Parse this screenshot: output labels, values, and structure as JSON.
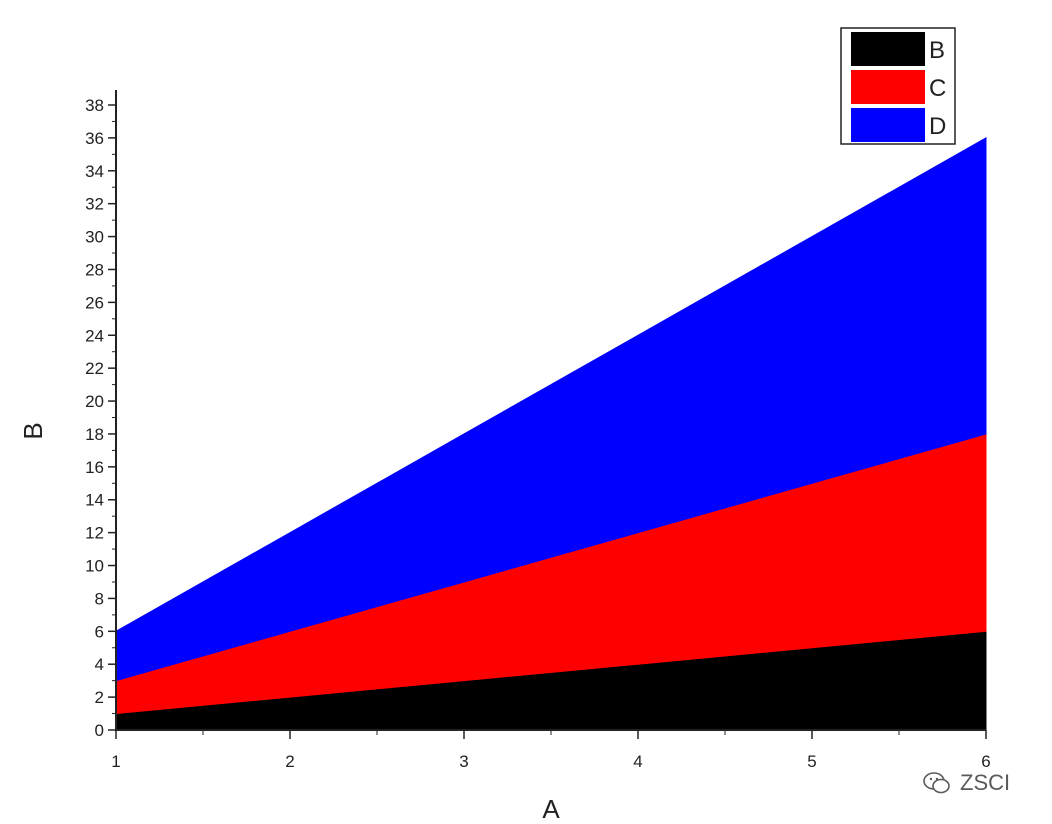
{
  "chart_data": {
    "type": "area",
    "stacked": true,
    "title": "",
    "xlabel": "A",
    "ylabel": "B",
    "x": [
      1,
      2,
      3,
      4,
      5,
      6
    ],
    "xlim": [
      1,
      6
    ],
    "ylim": [
      0,
      38
    ],
    "xticks": [
      1,
      2,
      3,
      4,
      5,
      6
    ],
    "yticks": [
      0,
      2,
      4,
      6,
      8,
      10,
      12,
      14,
      16,
      18,
      20,
      22,
      24,
      26,
      28,
      30,
      32,
      34,
      36,
      38
    ],
    "series": [
      {
        "name": "B",
        "color": "#000000",
        "values": [
          1,
          2,
          3,
          4,
          5,
          6
        ]
      },
      {
        "name": "C",
        "color": "#ff0000",
        "values": [
          2,
          4,
          6,
          8,
          10,
          12
        ]
      },
      {
        "name": "D",
        "color": "#0000ff",
        "values": [
          3,
          6,
          9,
          12,
          15,
          18
        ]
      }
    ],
    "legend": "top-right",
    "grid": false
  },
  "watermark": {
    "text": "ZSCI",
    "icon": "wechat-icon"
  }
}
